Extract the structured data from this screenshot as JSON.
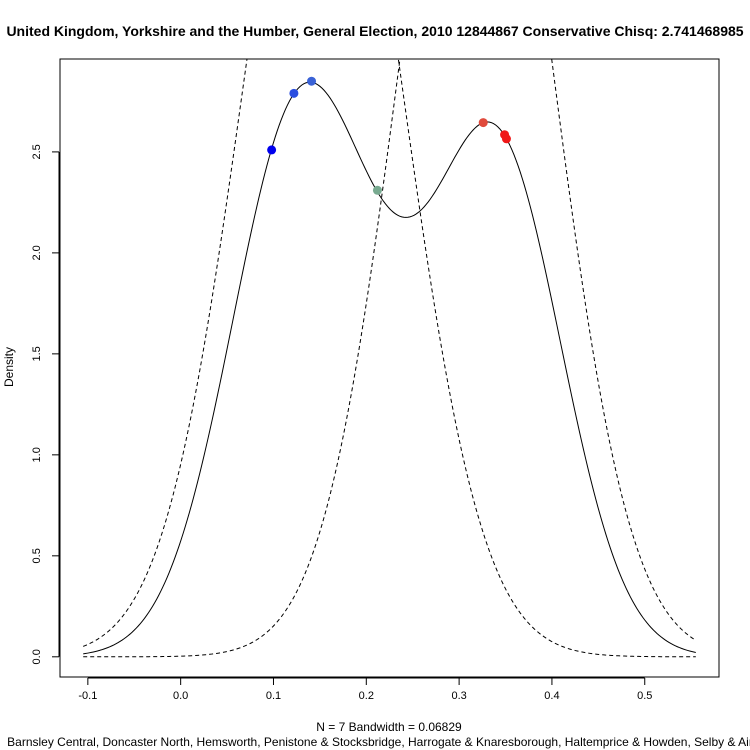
{
  "chart_data": {
    "type": "line",
    "title": "United Kingdom, Yorkshire and the Humber, General Election, 2010 12844867 Conservative Chisq: 2.741468985",
    "xlabel": "N = 7   Bandwidth = 0.06829",
    "ylabel": "Density",
    "sub": "Barnsley Central, Doncaster North, Hemsworth, Penistone & Stocksbridge, Harrogate & Knaresborough, Haltemprice & Howden, Selby & Ainsty",
    "xlim": [
      -0.13,
      0.58
    ],
    "ylim": [
      -0.1,
      2.96
    ],
    "x_ticks": [
      -0.1,
      0.0,
      0.1,
      0.2,
      0.3,
      0.4,
      0.5
    ],
    "x_tick_labels": [
      "-0.1",
      "0.0",
      "0.1",
      "0.2",
      "0.3",
      "0.4",
      "0.5"
    ],
    "y_ticks": [
      0.0,
      0.5,
      1.0,
      1.5,
      2.0,
      2.5
    ],
    "y_tick_labels": [
      "0.0",
      "0.5",
      "1.0",
      "1.5",
      "2.0",
      "2.5"
    ],
    "grid": false,
    "bandwidth": 0.06829,
    "kde_sample": [
      0.098,
      0.122,
      0.141,
      0.212,
      0.326,
      0.349,
      0.351
    ],
    "reference_curves": [
      {
        "style": "dashed",
        "kind": "gaussian",
        "mean": 0.153,
        "sd": 0.086,
        "scale": 1.0
      },
      {
        "style": "dashed",
        "kind": "gaussian",
        "mean": 0.318,
        "sd": 0.083,
        "scale": 1.0
      }
    ],
    "points": [
      {
        "x": 0.098,
        "y": 2.51,
        "color": "#0000ee"
      },
      {
        "x": 0.122,
        "y": 2.79,
        "color": "#2a4ee0"
      },
      {
        "x": 0.141,
        "y": 2.85,
        "color": "#3a62d6"
      },
      {
        "x": 0.212,
        "y": 2.31,
        "color": "#78aa90"
      },
      {
        "x": 0.326,
        "y": 2.645,
        "color": "#e04a3c"
      },
      {
        "x": 0.349,
        "y": 2.585,
        "color": "#f01818"
      },
      {
        "x": 0.351,
        "y": 2.565,
        "color": "#f01818"
      }
    ],
    "x_range_drawn": [
      -0.105,
      0.555
    ]
  }
}
